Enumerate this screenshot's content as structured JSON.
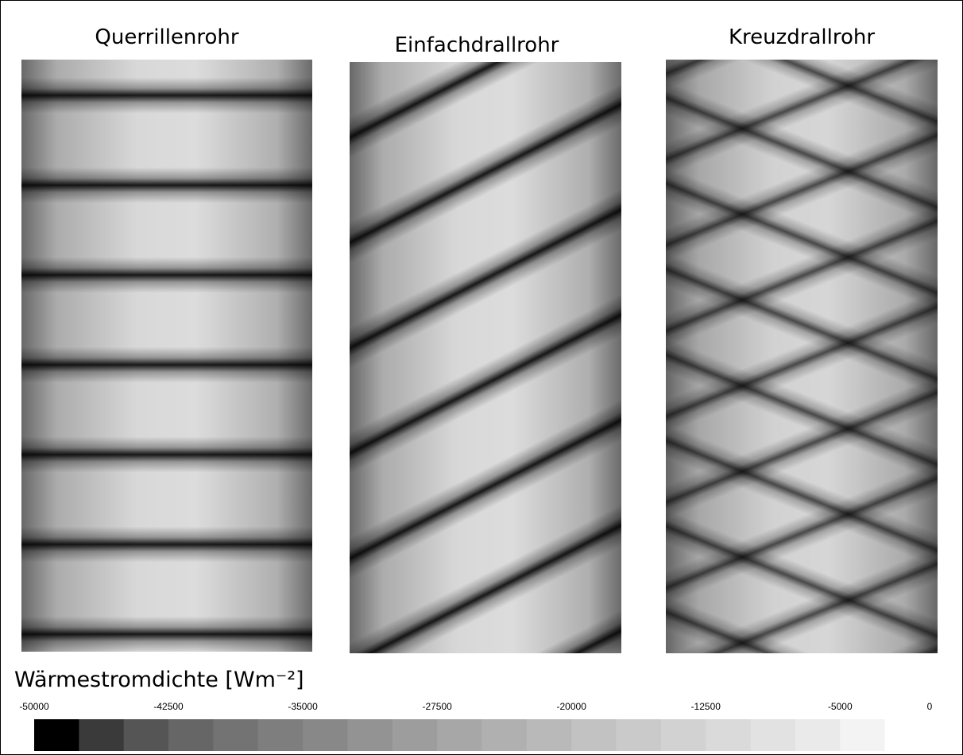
{
  "panels": [
    {
      "title": "Querrillenrohr"
    },
    {
      "title": "Einfachdrallrohr"
    },
    {
      "title": "Kreuzdrallrohr"
    }
  ],
  "colorbar": {
    "label": "Wärmestromdichte [Wm⁻²]",
    "lim": [
      -50000,
      0
    ],
    "ticks": [
      -50000,
      -42500,
      -35000,
      -27500,
      -20000,
      -12500,
      -5000,
      0
    ],
    "colors": [
      "#000000",
      "#3a3a3a",
      "#555555",
      "#666666",
      "#737373",
      "#7e7e7e",
      "#888888",
      "#939393",
      "#9d9d9d",
      "#a7a7a7",
      "#b0b0b0",
      "#b9b9b9",
      "#c2c2c2",
      "#cacaca",
      "#d2d2d2",
      "#dadada",
      "#e2e2e2",
      "#eaeaea",
      "#f3f3f3",
      "#ffffff"
    ]
  }
}
